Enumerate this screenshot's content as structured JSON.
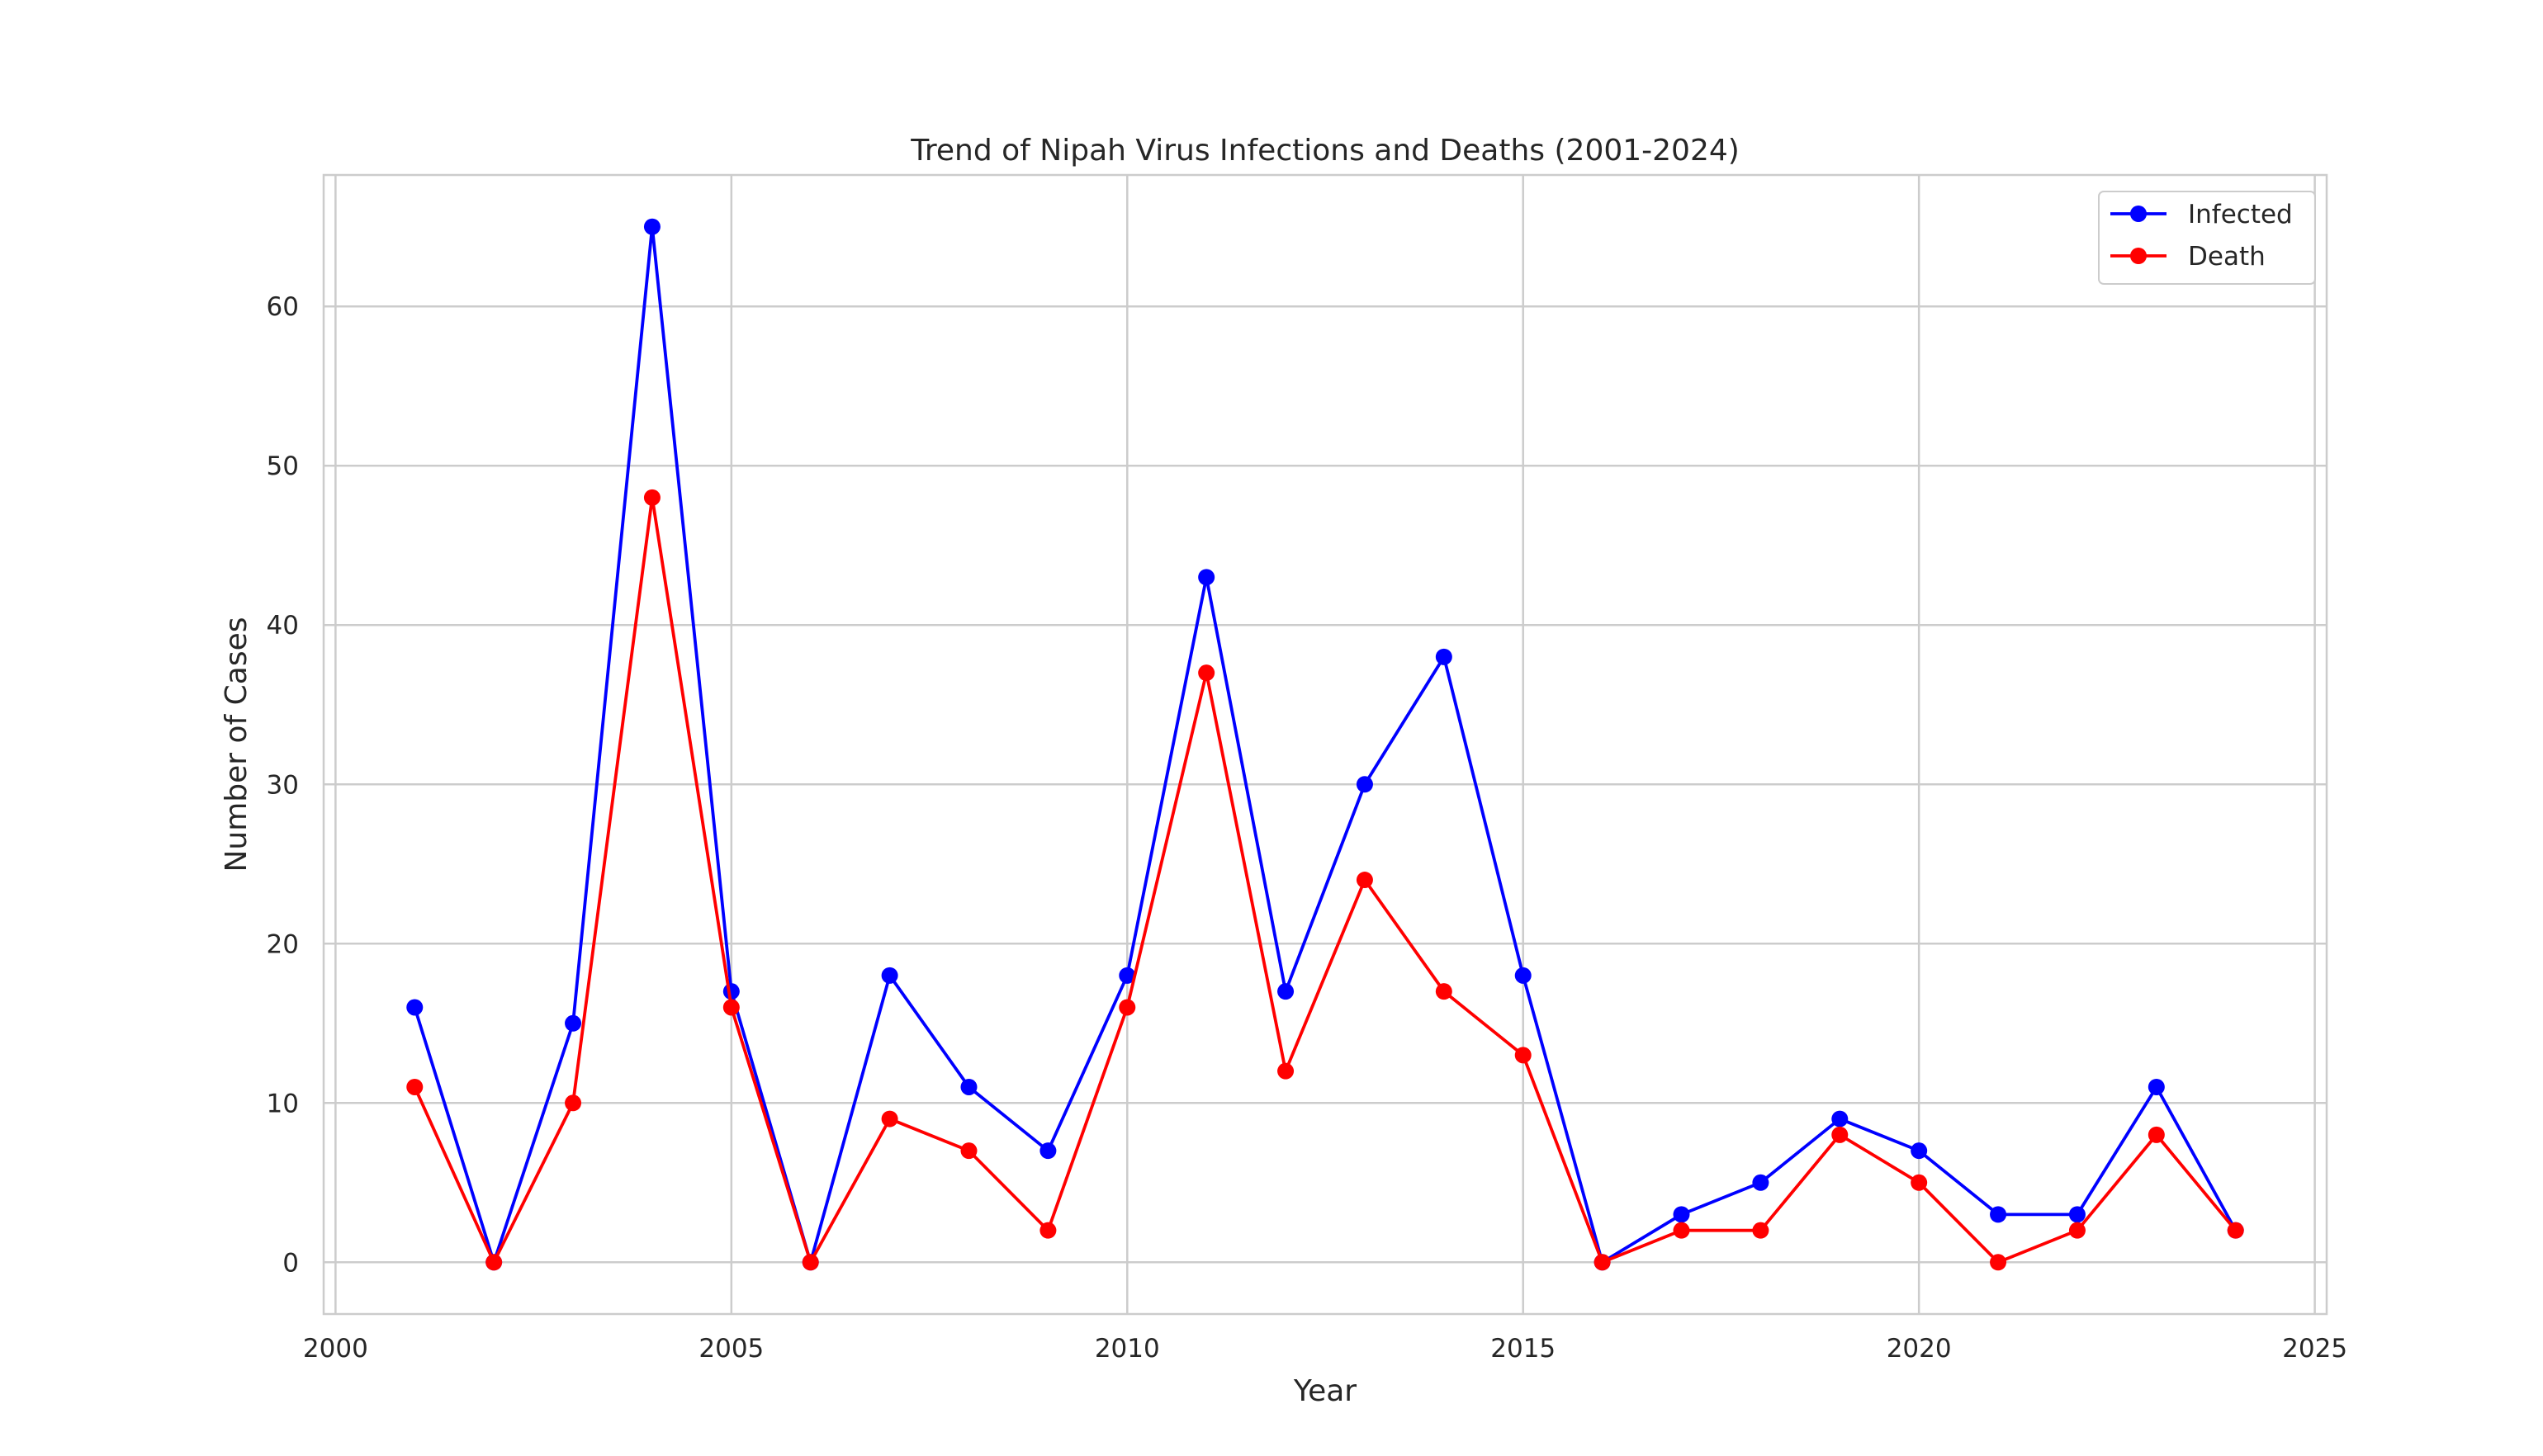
{
  "chart_data": {
    "type": "line",
    "title": "Trend of Nipah Virus Infections and Deaths (2001-2024)",
    "xlabel": "Year",
    "ylabel": "Number of Cases",
    "x": [
      2001,
      2002,
      2003,
      2004,
      2005,
      2006,
      2007,
      2008,
      2009,
      2010,
      2011,
      2012,
      2013,
      2014,
      2015,
      2016,
      2017,
      2018,
      2019,
      2020,
      2021,
      2022,
      2023,
      2024
    ],
    "series": [
      {
        "name": "Infected",
        "color": "#0000ff",
        "values": [
          16,
          0,
          15,
          65,
          17,
          0,
          18,
          11,
          7,
          18,
          43,
          17,
          30,
          38,
          18,
          0,
          3,
          5,
          9,
          7,
          3,
          3,
          11,
          2
        ]
      },
      {
        "name": "Death",
        "color": "#ff0000",
        "values": [
          11,
          0,
          10,
          48,
          16,
          0,
          9,
          7,
          2,
          16,
          37,
          12,
          24,
          17,
          13,
          0,
          2,
          2,
          8,
          5,
          0,
          2,
          8,
          2
        ]
      }
    ],
    "xlim": [
      1999.85,
      2025.15
    ],
    "ylim": [
      -3.25,
      68.25
    ],
    "xticks": [
      2000,
      2005,
      2010,
      2015,
      2020,
      2025
    ],
    "yticks": [
      0,
      10,
      20,
      30,
      40,
      50,
      60
    ],
    "grid": true,
    "legend_position": "top-right"
  }
}
